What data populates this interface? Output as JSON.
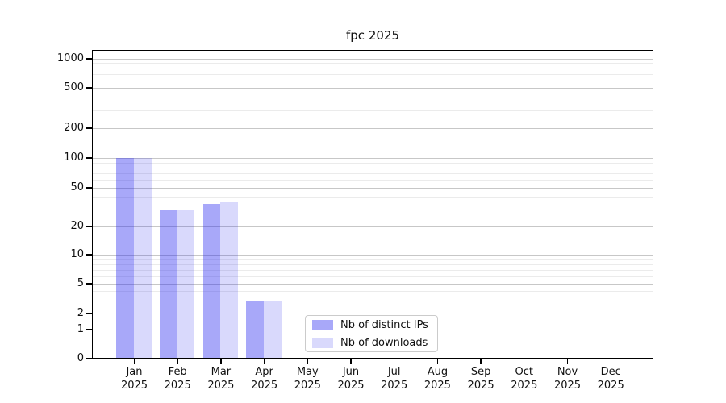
{
  "title": "fpc 2025",
  "legend": {
    "items": [
      {
        "label": "Nb of distinct IPs",
        "color": "rgba(30,30,240,0.39)"
      },
      {
        "label": "Nb of downloads",
        "color": "rgba(30,30,240,0.17)"
      }
    ]
  },
  "chart_data": {
    "type": "bar",
    "title": "fpc 2025",
    "categories": [
      "Jan",
      "Feb",
      "Mar",
      "Apr",
      "May",
      "Jun",
      "Jul",
      "Aug",
      "Sep",
      "Oct",
      "Nov",
      "Dec"
    ],
    "year_label": "2025",
    "series": [
      {
        "name": "Nb of distinct IPs",
        "color": "rgba(30,30,240,0.39)",
        "values": [
          100,
          30,
          34,
          3,
          0,
          0,
          0,
          0,
          0,
          0,
          0,
          0
        ]
      },
      {
        "name": "Nb of downloads",
        "color": "rgba(30,30,240,0.17)",
        "values": [
          100,
          30,
          36,
          3,
          0,
          0,
          0,
          0,
          0,
          0,
          0,
          0
        ]
      }
    ],
    "yscale": "symlog",
    "yticks": [
      0,
      1,
      2,
      5,
      10,
      20,
      50,
      100,
      200,
      500,
      1000
    ],
    "ylim": [
      0,
      1200
    ],
    "grid": true,
    "legend_position": "lower center",
    "xlabel": "",
    "ylabel": ""
  }
}
